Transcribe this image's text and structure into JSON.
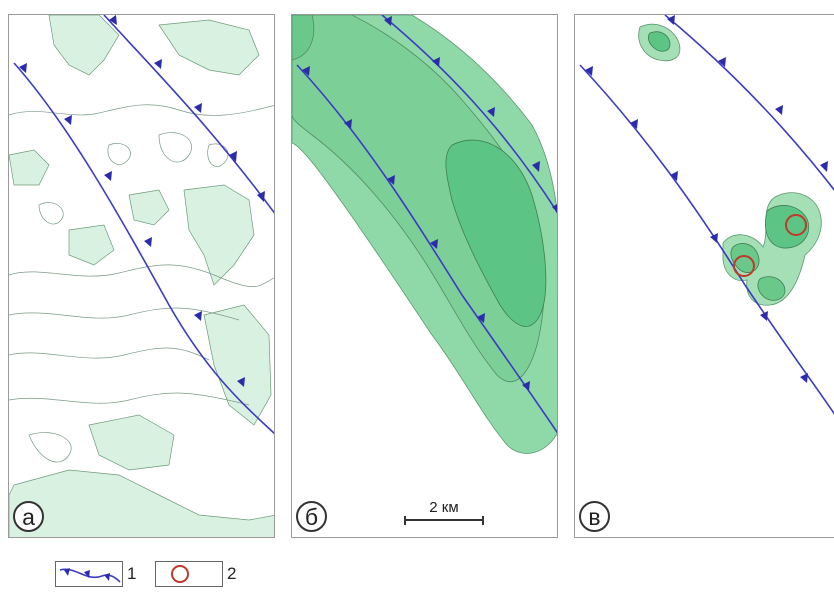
{
  "panels": [
    {
      "letter": "а",
      "name": "panel-a"
    },
    {
      "letter": "б",
      "name": "panel-b"
    },
    {
      "letter": "в",
      "name": "panel-c"
    }
  ],
  "scale_bar": {
    "label": "2 км"
  },
  "legend": {
    "items": [
      {
        "symbol": "fault-line-with-teeth-icon",
        "label": "1"
      },
      {
        "symbol": "red-circle-icon",
        "label": "2"
      }
    ]
  },
  "colors": {
    "fault_line": "#3b3bc4",
    "anomaly_light": "#cfeed8",
    "anomaly_medium": "#8fd8a7",
    "anomaly_dark": "#5cc485",
    "anomaly_darkest": "#33ad66",
    "marker_circle": "#c0392b",
    "frame": "#9a9a9a"
  }
}
